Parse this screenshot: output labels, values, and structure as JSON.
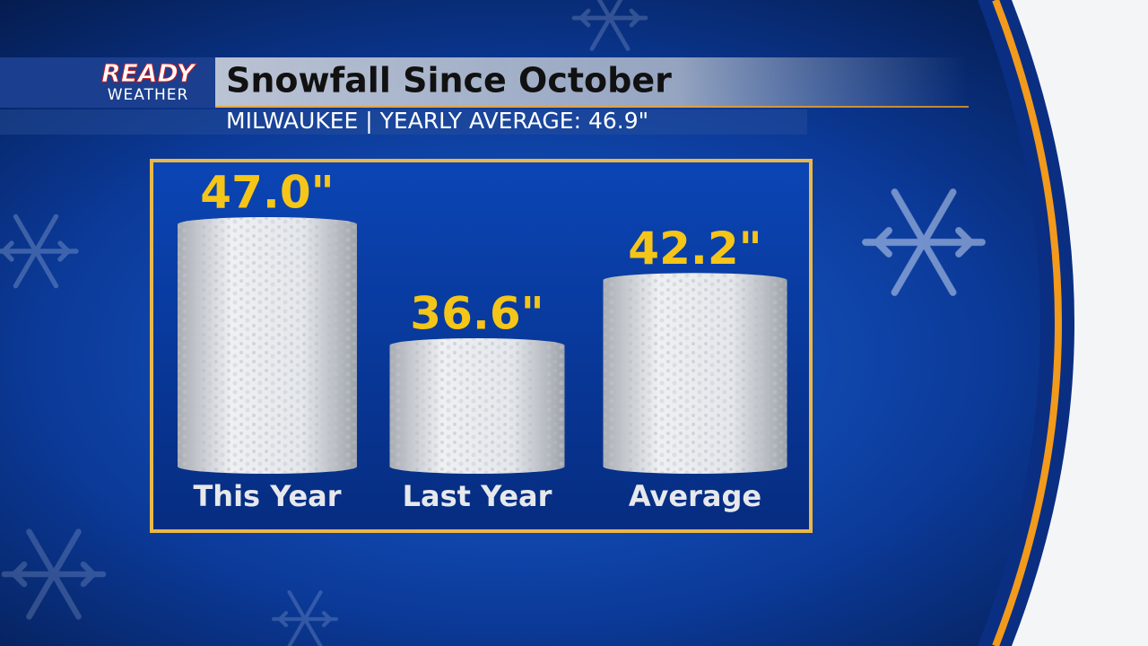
{
  "branding": {
    "top": "READY",
    "bottom": "WEATHER"
  },
  "chart_data": {
    "type": "bar",
    "title": "Snowfall Since October",
    "subtitle": "MILWAUKEE | YEARLY AVERAGE: 46.9\"",
    "categories": [
      "This Year",
      "Last Year",
      "Average"
    ],
    "values": [
      47.0,
      36.6,
      42.2
    ],
    "value_labels": [
      "47.0\"",
      "36.6\"",
      "42.2\""
    ],
    "color": "#e8eaee"
  }
}
